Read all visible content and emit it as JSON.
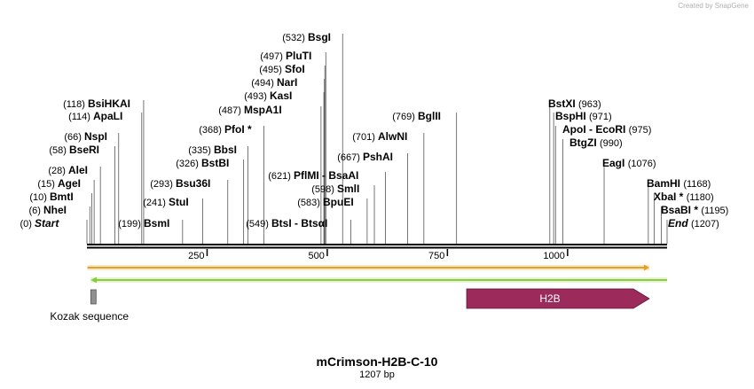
{
  "credit": "Created by SnapGene",
  "title": "mCrimson-H2B-C-10",
  "subtitle": "1207 bp",
  "seq_length": 1207,
  "ticks": [
    {
      "pos": 250,
      "label": "250"
    },
    {
      "pos": 500,
      "label": "500"
    },
    {
      "pos": 750,
      "label": "750"
    },
    {
      "pos": 1000,
      "label": "1000"
    }
  ],
  "sites": [
    {
      "pos": 0,
      "label_num": "(0)",
      "name": "Start"
    },
    {
      "pos": 6,
      "label_num": "(6)",
      "name": "NheI"
    },
    {
      "pos": 10,
      "label_num": "(10)",
      "name": "BmtI"
    },
    {
      "pos": 15,
      "label_num": "(15)",
      "name": "AgeI"
    },
    {
      "pos": 28,
      "label_num": "(28)",
      "name": "AleI"
    },
    {
      "pos": 58,
      "label_num": "(58)",
      "name": "BseRI"
    },
    {
      "pos": 66,
      "label_num": "(66)",
      "name": "NspI"
    },
    {
      "pos": 114,
      "label_num": "(114)",
      "name": "ApaLI"
    },
    {
      "pos": 118,
      "label_num": "(118)",
      "name": "BsiHKAI"
    },
    {
      "pos": 199,
      "label_num": "(199)",
      "name": "BsmI"
    },
    {
      "pos": 241,
      "label_num": "(241)",
      "name": "StuI"
    },
    {
      "pos": 293,
      "label_num": "(293)",
      "name": "Bsu36I"
    },
    {
      "pos": 326,
      "label_num": "(326)",
      "name": "BstBI"
    },
    {
      "pos": 335,
      "label_num": "(335)",
      "name": "BbsI"
    },
    {
      "pos": 368,
      "label_num": "(368)",
      "name": "PfoI *"
    },
    {
      "pos": 487,
      "label_num": "(487)",
      "name": "MspA1I"
    },
    {
      "pos": 493,
      "label_num": "(493)",
      "name": "KasI"
    },
    {
      "pos": 494,
      "label_num": "(494)",
      "name": "NarI"
    },
    {
      "pos": 495,
      "label_num": "(495)",
      "name": "SfoI"
    },
    {
      "pos": 497,
      "label_num": "(497)",
      "name": "PluTI"
    },
    {
      "pos": 532,
      "label_num": "(532)",
      "name": "BsgI"
    },
    {
      "pos": 549,
      "label_num": "(549)",
      "name": "BtsI - BtsαI"
    },
    {
      "pos": 583,
      "label_num": "(583)",
      "name": "BpuEI"
    },
    {
      "pos": 598,
      "label_num": "(598)",
      "name": "SmlI"
    },
    {
      "pos": 621,
      "label_num": "(621)",
      "name": "PflMI - BsaAI"
    },
    {
      "pos": 667,
      "label_num": "(667)",
      "name": "PshAI"
    },
    {
      "pos": 701,
      "label_num": "(701)",
      "name": "AlwNI"
    },
    {
      "pos": 769,
      "label_num": "(769)",
      "name": "BglII"
    },
    {
      "pos": 963,
      "label_num": "(963)",
      "name": "BstXI"
    },
    {
      "pos": 971,
      "label_num": "(971)",
      "name": "BspHI"
    },
    {
      "pos": 975,
      "label_num": "(975)",
      "name": "ApoI - EcoRI"
    },
    {
      "pos": 990,
      "label_num": "(990)",
      "name": "BtgZI"
    },
    {
      "pos": 1076,
      "label_num": "(1076)",
      "name": "EagI"
    },
    {
      "pos": 1168,
      "label_num": "(1168)",
      "name": "BamHI"
    },
    {
      "pos": 1180,
      "label_num": "(1180)",
      "name": "XbaI *"
    },
    {
      "pos": 1195,
      "label_num": "(1195)",
      "name": "BsaBI *"
    },
    {
      "pos": 1207,
      "label_num": "(1207)",
      "name": "End"
    }
  ],
  "features": {
    "orf_forward": {
      "start": 1,
      "end": 1170,
      "color": "#e8a020"
    },
    "orf_reverse": {
      "start": 15,
      "end": 1207,
      "color": "#8acc3c"
    },
    "kozak": {
      "label": "Kozak sequence",
      "start": 8,
      "end": 18,
      "color": "#909090"
    },
    "h2b": {
      "label": "H2B",
      "start": 790,
      "end": 1170,
      "color": "#9c2a5a"
    }
  }
}
